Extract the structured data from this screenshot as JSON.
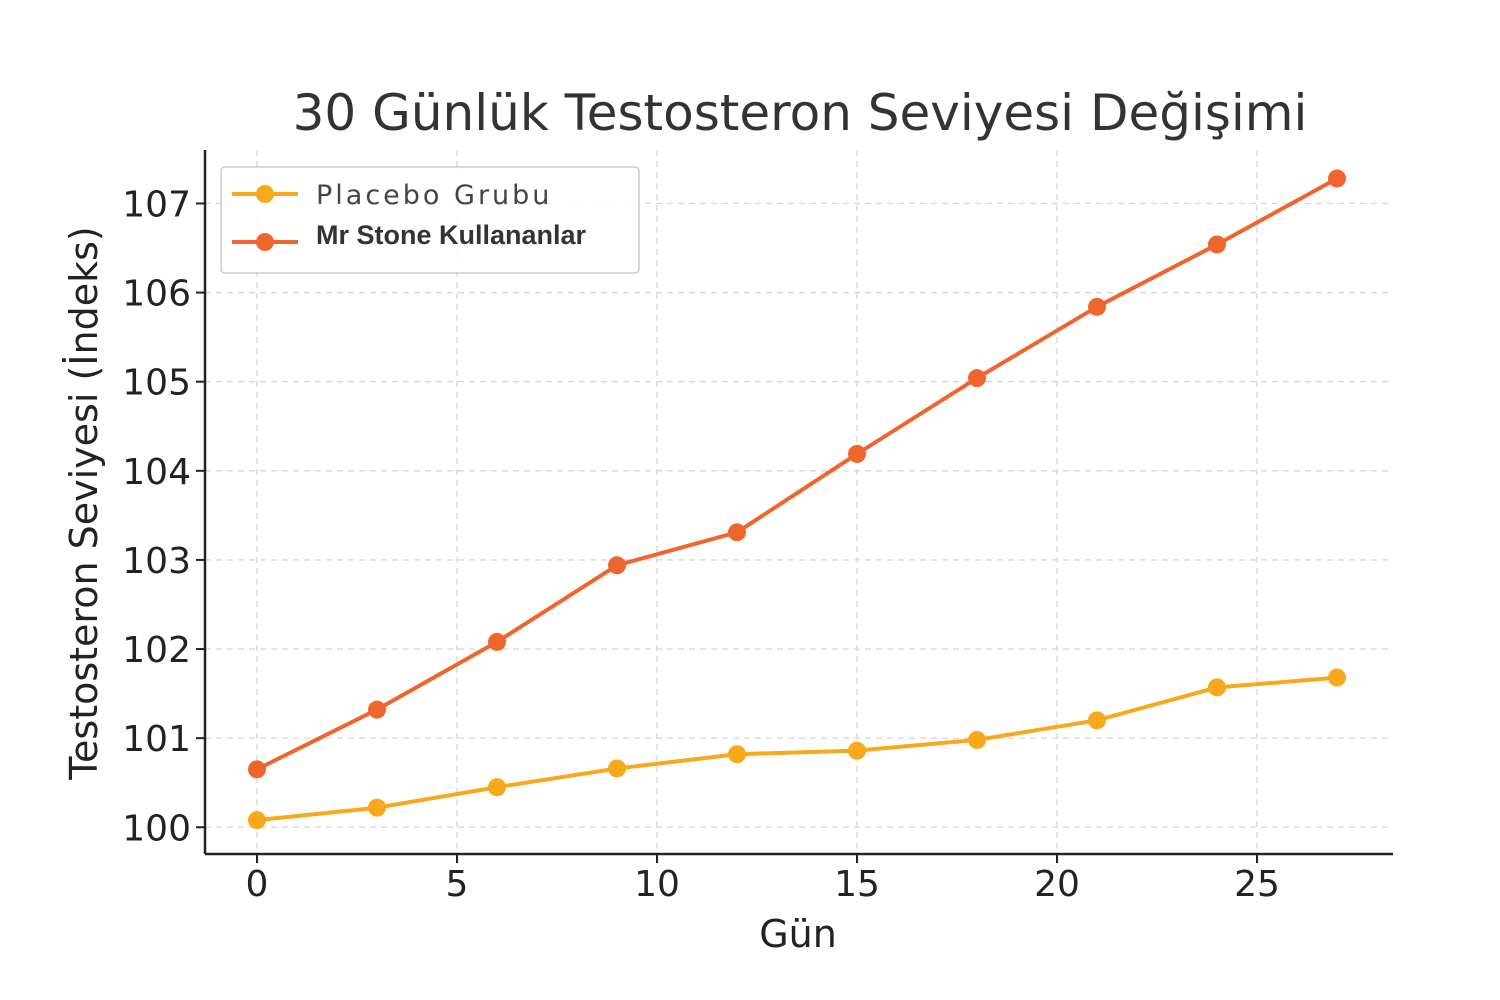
{
  "chart_data": {
    "type": "line",
    "title": "30 Günlük Testosteron Seviyesi Değişimi",
    "xlabel": "Gün",
    "ylabel": "Testosteron Seviyesi (İndeks)",
    "xlim": [
      -1.3,
      28.4
    ],
    "ylim": [
      99.7,
      107.6
    ],
    "xticks": [
      0,
      5,
      10,
      15,
      20,
      25
    ],
    "yticks": [
      100,
      101,
      102,
      103,
      104,
      105,
      106,
      107
    ],
    "grid": true,
    "legend_position": "top-left",
    "x": [
      0,
      3,
      6,
      9,
      12,
      15,
      18,
      21,
      24,
      27
    ],
    "series": [
      {
        "name": "Placebo Grubu",
        "color": "#f7a81b",
        "values": [
          100.08,
          100.22,
          100.45,
          100.66,
          100.82,
          100.86,
          100.98,
          101.2,
          101.57,
          101.68
        ]
      },
      {
        "name": "Mr Stone Kullananlar",
        "color": "#f0652d",
        "values": [
          100.65,
          101.32,
          102.08,
          102.94,
          103.31,
          104.19,
          105.04,
          105.84,
          106.54,
          107.28
        ]
      }
    ]
  }
}
